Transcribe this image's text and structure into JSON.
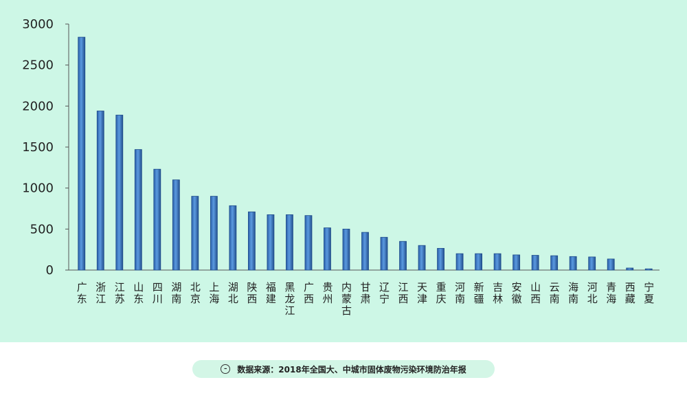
{
  "chart_data": {
    "type": "bar",
    "categories": [
      "广东",
      "浙江",
      "江苏",
      "山东",
      "四川",
      "湖南",
      "北京",
      "上海",
      "湖北",
      "陕西",
      "福建",
      "黑龙江",
      "广西",
      "贵州",
      "内蒙古",
      "甘肃",
      "辽宁",
      "江西",
      "天津",
      "重庆",
      "河南",
      "新疆",
      "吉林",
      "安徽",
      "山西",
      "云南",
      "海南",
      "河北",
      "青海",
      "西藏",
      "宁夏"
    ],
    "values": [
      2840,
      1940,
      1890,
      1470,
      1230,
      1100,
      900,
      900,
      785,
      710,
      675,
      675,
      665,
      515,
      500,
      460,
      400,
      350,
      300,
      265,
      200,
      200,
      200,
      185,
      180,
      175,
      165,
      160,
      135,
      25,
      15
    ],
    "color": "#3d7fd0",
    "ylim": [
      0,
      3000
    ],
    "yticks": [
      0,
      500,
      1000,
      1500,
      2000,
      2500,
      3000
    ],
    "grid": false
  },
  "caption": "数据来源：2018年全国大、中城市固体废物污染环境防治年报"
}
